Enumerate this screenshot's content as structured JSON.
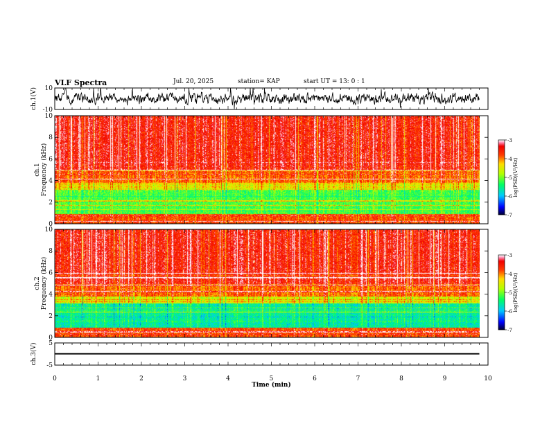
{
  "header": {
    "title": "VLF Spectra",
    "date": "Jul. 20, 2025",
    "station": "station= KAP",
    "start": "start  UT =  13: 0  : 1"
  },
  "chart_data": [
    {
      "type": "line",
      "panel": "ch1-waveform",
      "ylabel": "ch.1(V)",
      "ylim": [
        -10,
        10
      ],
      "yticks": [
        "10",
        "-10"
      ],
      "x_range_min": [
        0,
        9.8
      ],
      "description_values": "noisy voltage trace oscillating roughly between -8 and 8 V"
    },
    {
      "type": "heatmap",
      "panel": "ch1-spectrogram",
      "ylabel": "ch.1\nFrequency (kHz)",
      "ylim": [
        0,
        10
      ],
      "yticks": [
        "0",
        "2",
        "4",
        "6",
        "8",
        "10"
      ],
      "x_range_min": [
        0,
        9.8
      ],
      "bands": [
        {
          "from_khz": 0.0,
          "to_khz": 0.9,
          "level": -3.8
        },
        {
          "from_khz": 0.9,
          "to_khz": 3.2,
          "level": -5.2
        },
        {
          "from_khz": 3.2,
          "to_khz": 3.8,
          "level": -4.4
        },
        {
          "from_khz": 3.8,
          "to_khz": 5.0,
          "level": -3.9
        },
        {
          "from_khz": 5.0,
          "to_khz": 10.0,
          "level": -3.5
        }
      ],
      "colorbar": {
        "label": "log(PSD)(V²/Hz)",
        "range": [
          -7,
          -3
        ],
        "ticks": [
          "-3",
          "-4",
          "-5",
          "-6",
          "-7"
        ]
      }
    },
    {
      "type": "heatmap",
      "panel": "ch2-spectrogram",
      "ylabel": "ch.2\nFrequency (kHz)",
      "ylim": [
        0,
        10
      ],
      "yticks": [
        "0",
        "2",
        "4",
        "6",
        "8",
        "10"
      ],
      "x_range_min": [
        0,
        9.8
      ],
      "bands": [
        {
          "from_khz": 0.0,
          "to_khz": 0.9,
          "level": -3.8
        },
        {
          "from_khz": 0.9,
          "to_khz": 3.2,
          "level": -5.6
        },
        {
          "from_khz": 3.2,
          "to_khz": 3.8,
          "level": -4.6
        },
        {
          "from_khz": 3.8,
          "to_khz": 5.0,
          "level": -3.9
        },
        {
          "from_khz": 5.0,
          "to_khz": 10.0,
          "level": -3.5
        }
      ],
      "colorbar": {
        "label": "log(PSD)(V²/Hz)",
        "range": [
          -7,
          -3
        ],
        "ticks": [
          "-3",
          "-4",
          "-5",
          "-6",
          "-7"
        ]
      }
    },
    {
      "type": "line",
      "panel": "ch3-waveform",
      "ylabel": "ch.3(V)",
      "ylim": [
        -5,
        5
      ],
      "yticks": [
        "5",
        "-5"
      ],
      "level_band": [
        -0.2,
        0.4
      ],
      "x_range_min": [
        0,
        9.8
      ]
    }
  ],
  "x_axis": {
    "label": "Time (min)",
    "ticks": [
      "0",
      "1",
      "2",
      "3",
      "4",
      "5",
      "6",
      "7",
      "8",
      "9",
      "10"
    ],
    "range": [
      0,
      10
    ]
  },
  "colors": {
    "trace": "#000000",
    "frame": "#000000",
    "background": "#ffffff"
  }
}
